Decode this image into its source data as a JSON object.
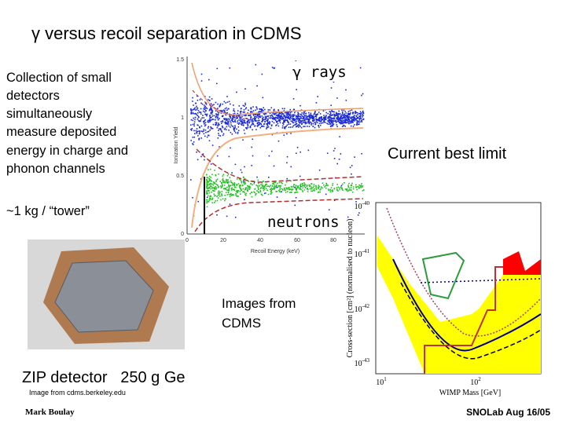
{
  "title": "γ versus recoil separation in CDMS",
  "text_block": {
    "lines": [
      "Collection of small",
      "detectors",
      "simultaneously",
      "measure deposited",
      "energy in charge and",
      "phonon channels"
    ]
  },
  "tower_note": "~1 kg / “tower”",
  "scatter_plot": {
    "y_label": "Ionization Yield",
    "x_label": "Recoil Energy (keV)",
    "x_ticks": [
      "0",
      "20",
      "40",
      "60",
      "80"
    ],
    "y_ticks": [
      "0",
      "0.5",
      "1",
      "1.5"
    ],
    "gamma_label": "γ rays",
    "neutron_label": "neutrons"
  },
  "limit_title": "Current best limit",
  "limit_plot": {
    "y_label": "Cross-section [cm²] (normalised to nucleon)",
    "x_label": "WIMP Mass [GeV]",
    "y_ticks": [
      {
        "base": "10",
        "exp": "-40"
      },
      {
        "base": "10",
        "exp": "-41"
      },
      {
        "base": "10",
        "exp": "-42"
      },
      {
        "base": "10",
        "exp": "-43"
      }
    ],
    "x_ticks": [
      {
        "base": "10",
        "exp": "1"
      },
      {
        "base": "10",
        "exp": "2"
      }
    ]
  },
  "images_credit": {
    "lines": [
      "Images from",
      "CDMS"
    ]
  },
  "photo_caption": "ZIP detector   250 g Ge",
  "photo_credit": "Image from cdms.berkeley.edu",
  "footer": {
    "author": "Mark Boulay",
    "event": "SNOLab Aug 16/05"
  }
}
